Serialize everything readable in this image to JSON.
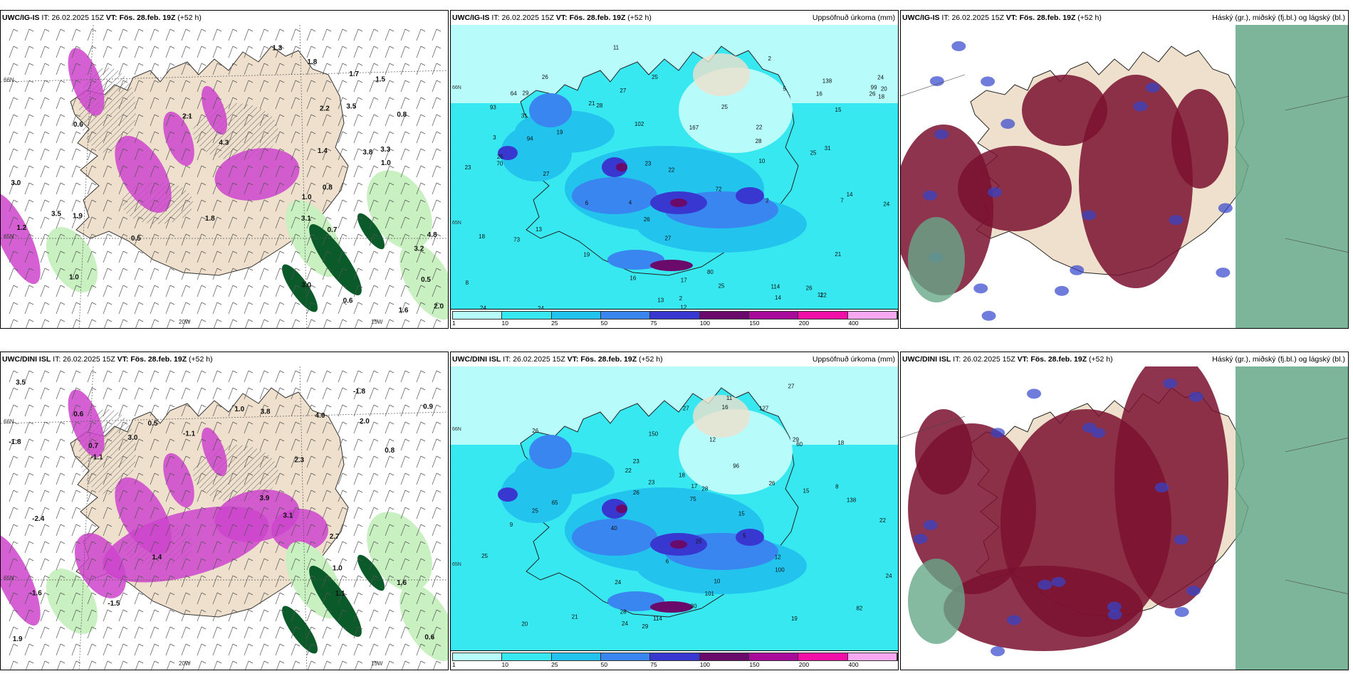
{
  "colors": {
    "land": "#eee0cc",
    "sea_bg": "#ffffff",
    "precip_magenta": "#cc44cc",
    "precip_light_green": "#c8f0c0",
    "precip_dark_green": "#0a5a2a",
    "accum_scale": [
      "#b8fbfb",
      "#38e8f0",
      "#22c4ee",
      "#3a86f0",
      "#3838d0",
      "#6a0a6a",
      "#a80a9a",
      "#f010a8",
      "#f8a8f0"
    ],
    "cloud_high": "#66a888",
    "cloud_mid": "#7a1030",
    "cloud_low": "#3344cc"
  },
  "panels": [
    {
      "model": "UWC/IG-IS",
      "it_label": "IT:",
      "it_value": "26.02.2025 15Z",
      "vt_label": "VT:",
      "vt_value": "Fös. 28.feb. 19Z",
      "lead": "(+52 h)",
      "right_title": "",
      "map_type": "precip-wind",
      "axis_labels": [
        "66N",
        "65N",
        "20W",
        "15W"
      ],
      "point_values": [
        "3.1",
        "4.8",
        "3.8",
        "3.2",
        "3.0",
        "3.5",
        "3.3",
        "4.3",
        "0.5",
        "0.6",
        "0.8",
        "1.0",
        "1.2",
        "0.7",
        "0.5",
        "1.6",
        "1.5",
        "3.5",
        "1.7",
        "2.1",
        "1.8",
        "3.0",
        "1.4",
        "1.8",
        "1.0",
        "1.0",
        "0.6",
        "2.2",
        "2.0",
        "1.9",
        "0.8",
        "1.3"
      ]
    },
    {
      "model": "UWC/IG-IS",
      "it_label": "IT:",
      "it_value": "26.02.2025 15Z",
      "vt_label": "VT:",
      "vt_value": "Fös. 28.feb. 19Z",
      "lead": "(+52 h)",
      "right_title": "Uppsöfnuð úrkoma (mm)",
      "map_type": "accumulated-precip",
      "axis_labels": [
        "66N",
        "65N"
      ],
      "legend_ticks": [
        "1",
        "10",
        "25",
        "50",
        "75",
        "100",
        "150",
        "200",
        "400"
      ],
      "point_values": [
        "12",
        "13",
        "8",
        "2",
        "2",
        "19",
        "25",
        "24",
        "26",
        "29",
        "27",
        "26",
        "25",
        "25",
        "31",
        "31",
        "26",
        "28",
        "22",
        "22",
        "25",
        "21",
        "27",
        "24",
        "23",
        "64",
        "73",
        "94",
        "102",
        "72",
        "93",
        "80",
        "114",
        "70",
        "99",
        "138",
        "167",
        "7",
        "6",
        "5",
        "10",
        "4",
        "3",
        "2",
        "22",
        "16",
        "19",
        "14",
        "11",
        "14",
        "18",
        "20",
        "16",
        "18",
        "24",
        "25",
        "23",
        "21",
        "28",
        "27",
        "26",
        "24",
        "17",
        "13",
        "11",
        "15"
      ]
    },
    {
      "model": "UWC/IG-IS",
      "it_label": "IT:",
      "it_value": "26.02.2025 15Z",
      "vt_label": "VT:",
      "vt_value": "Fös. 28.feb. 19Z",
      "lead": "(+52 h)",
      "right_title": "Háský (gr.), miðský (fj.bl.) og lágský (bl.)",
      "map_type": "cloud-cover"
    },
    {
      "model": "UWC/DINI ISL",
      "it_label": "IT:",
      "it_value": "26.02.2025 15Z",
      "vt_label": "VT:",
      "vt_value": "Fös. 28.feb. 19Z",
      "lead": "(+52 h)",
      "right_title": "",
      "map_type": "precip-wind",
      "axis_labels": [
        "66N",
        "65N",
        "20W",
        "15W"
      ],
      "point_values": [
        "-1.8",
        "-1.5",
        "-2.4",
        "-1.1",
        "-1.1",
        "-1.6",
        "-1.8",
        "3.9",
        "3.8",
        "1.0",
        "2.7",
        "1.9",
        "1.6",
        "3.5",
        "3.1",
        "3.0",
        "4.0",
        "2.0",
        "0.6",
        "0.7",
        "0.8",
        "0.5",
        "1.0",
        "0.6",
        "2.3",
        "1.1",
        "0.9",
        "1.4"
      ]
    },
    {
      "model": "UWC/DINI ISL",
      "it_label": "IT:",
      "it_value": "26.02.2025 15Z",
      "vt_label": "VT:",
      "vt_value": "Fös. 28.feb. 19Z",
      "lead": "(+52 h)",
      "right_title": "Uppsöfnuð úrkoma (mm)",
      "map_type": "accumulated-precip",
      "axis_labels": [
        "66N",
        "65N"
      ],
      "legend_ticks": [
        "1",
        "10",
        "25",
        "50",
        "75",
        "100",
        "150",
        "200",
        "400"
      ],
      "point_values": [
        "40",
        "25",
        "18",
        "11",
        "12",
        "6",
        "5",
        "8",
        "12",
        "15",
        "22",
        "22",
        "24",
        "23",
        "25",
        "26",
        "28",
        "29",
        "26",
        "27",
        "24",
        "25",
        "65",
        "75",
        "127",
        "60",
        "100",
        "114",
        "101",
        "82",
        "96",
        "138",
        "150",
        "10",
        "9",
        "16",
        "15",
        "17",
        "19",
        "20",
        "18",
        "21",
        "23",
        "24",
        "26",
        "27",
        "29",
        "30",
        "28"
      ]
    },
    {
      "model": "UWC/DINI ISL",
      "it_label": "IT:",
      "it_value": "26.02.2025 15Z",
      "vt_label": "VT:",
      "vt_value": "Fös. 28.feb. 19Z",
      "lead": "(+52 h)",
      "right_title": "Háský (gr.), miðský (fj.bl.) og lágský (bl.)",
      "map_type": "cloud-cover"
    }
  ]
}
